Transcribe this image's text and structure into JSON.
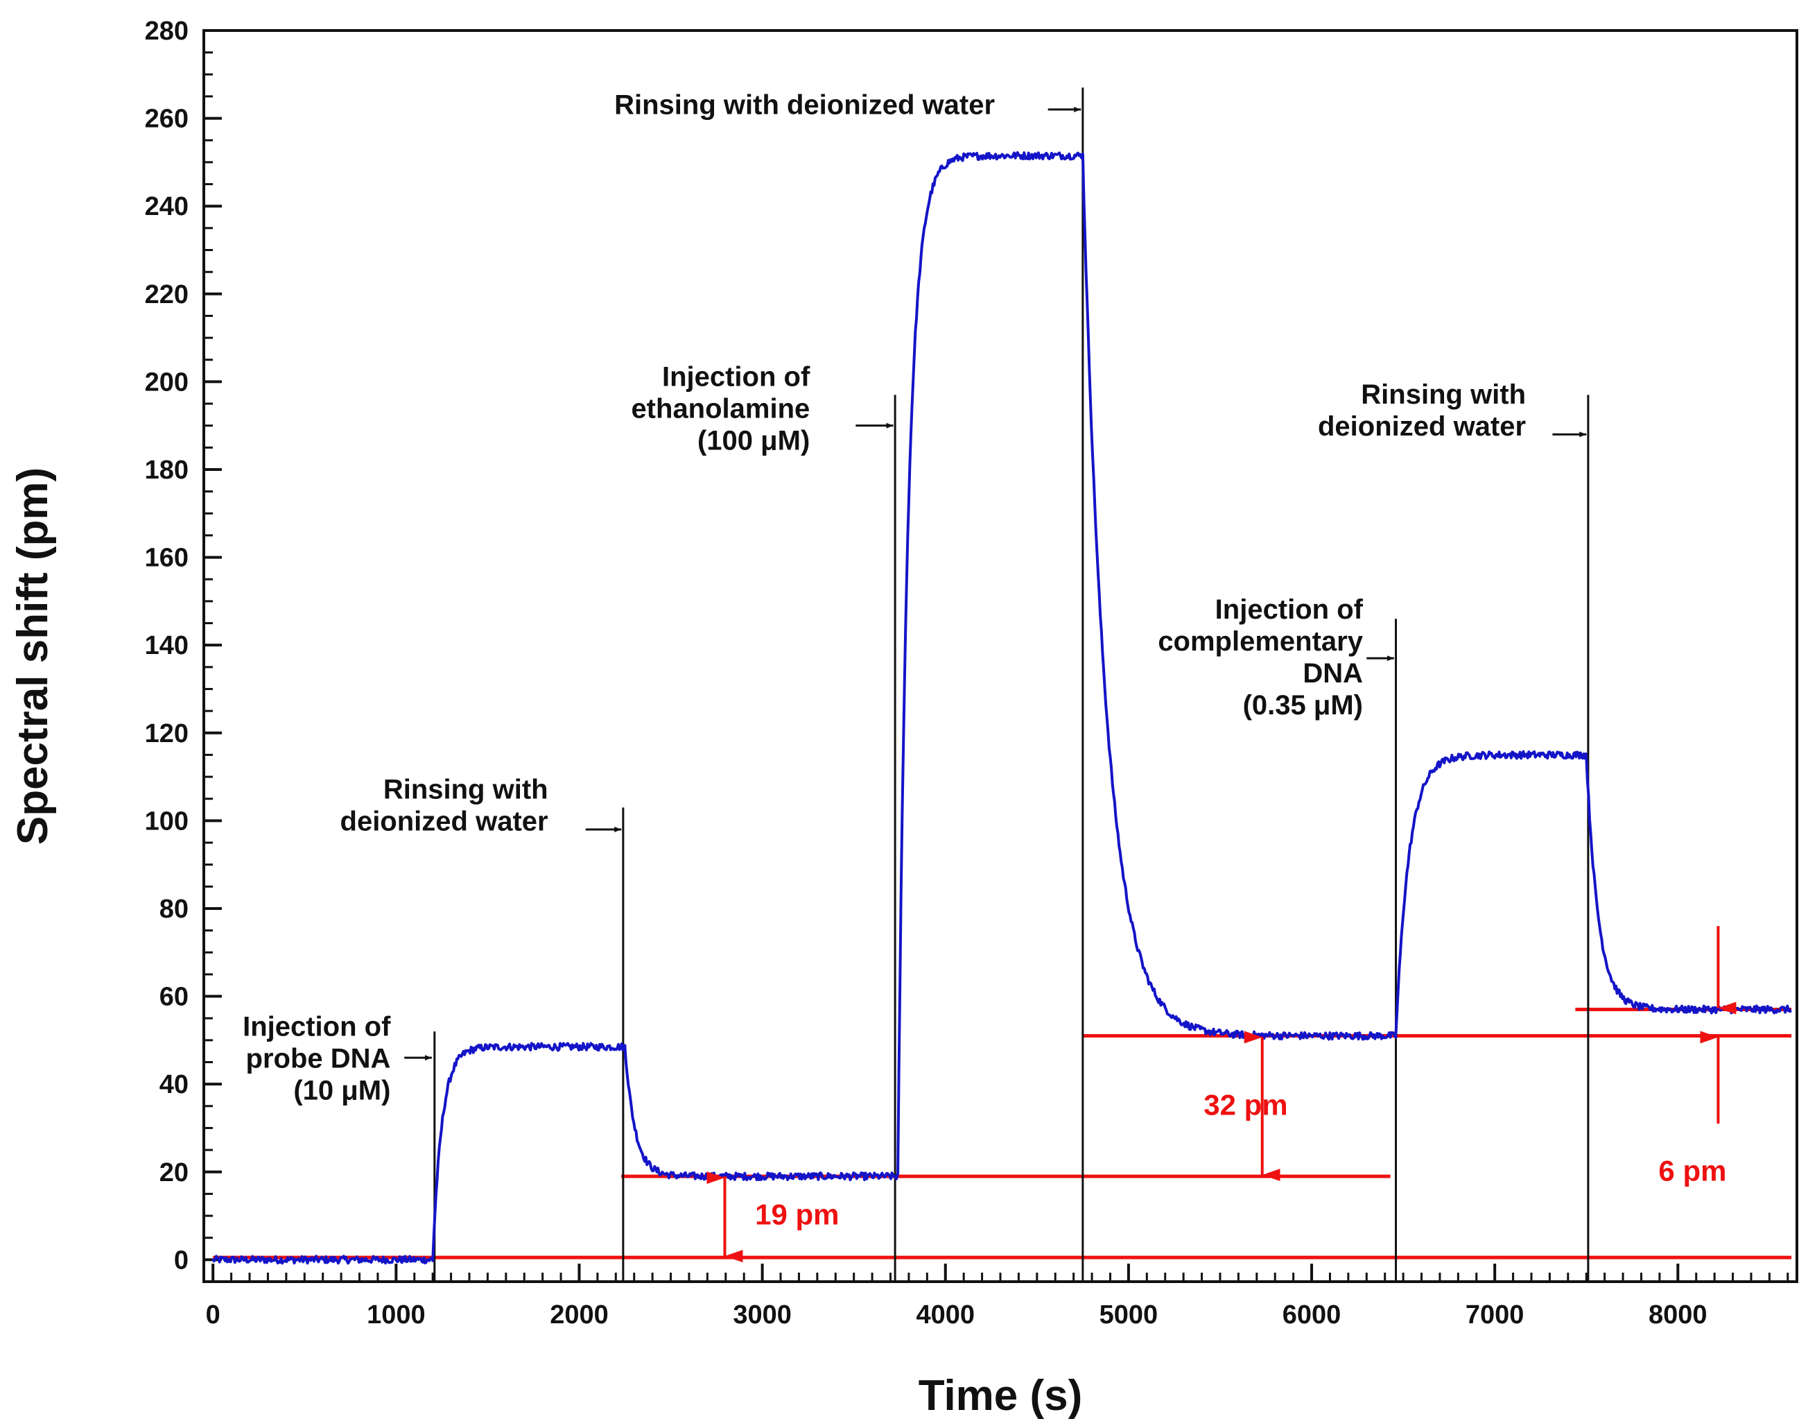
{
  "chart_data": {
    "type": "line",
    "xlabel": "Time (s)",
    "ylabel": "Spectral shift (pm)",
    "xlim": [
      -50,
      8650
    ],
    "ylim": [
      -5,
      280
    ],
    "x_ticks": [
      0,
      1000,
      2000,
      3000,
      4000,
      5000,
      6000,
      7000,
      8000
    ],
    "y_ticks": [
      0,
      20,
      40,
      60,
      80,
      100,
      120,
      140,
      160,
      180,
      200,
      220,
      240,
      260,
      280
    ],
    "series": [
      {
        "name": "spectral shift",
        "color": "#1414c8",
        "segments": [
          {
            "t0": 0,
            "t1": 1200,
            "from": 0,
            "to": 0,
            "mode": "flat"
          },
          {
            "t0": 1200,
            "t1": 2250,
            "from": 0,
            "to": 48.5,
            "mode": "rise",
            "tau": 50
          },
          {
            "t0": 2250,
            "t1": 3740,
            "from": 48.5,
            "to": 19,
            "mode": "fall",
            "tau": 55
          },
          {
            "t0": 3740,
            "t1": 4750,
            "from": 19,
            "to": 251.5,
            "mode": "rise",
            "tau": 55
          },
          {
            "t0": 4750,
            "t1": 6460,
            "from": 251.5,
            "to": 51,
            "mode": "fall",
            "tau": 130
          },
          {
            "t0": 6460,
            "t1": 7500,
            "from": 51,
            "to": 115,
            "mode": "rise",
            "tau": 70
          },
          {
            "t0": 7500,
            "t1": 8620,
            "from": 115,
            "to": 57,
            "mode": "fall",
            "tau": 65
          }
        ]
      }
    ],
    "event_lines": [
      {
        "x": 1210,
        "y_top": 52
      },
      {
        "x": 2240,
        "y_top": 103
      },
      {
        "x": 3725,
        "y_top": 197
      },
      {
        "x": 4750,
        "y_top": 267
      },
      {
        "x": 6460,
        "y_top": 146
      },
      {
        "x": 7510,
        "y_top": 197
      }
    ],
    "baselines": [
      {
        "x0": 0,
        "x1": 8620,
        "y": 0.5
      },
      {
        "x0": 2230,
        "x1": 6430,
        "y": 19
      },
      {
        "x0": 4750,
        "x1": 8620,
        "y": 51
      },
      {
        "x0": 7440,
        "x1": 8620,
        "y": 57
      }
    ],
    "annotations": [
      {
        "lines": [
          "Injection of",
          "probe DNA",
          "(10 μM)"
        ],
        "x": 970,
        "y": 51,
        "arrow_y": 46,
        "arrow_x0": 1045,
        "arrow_x1": 1195
      },
      {
        "lines": [
          "Rinsing with",
          "deionized water"
        ],
        "x": 1830,
        "y": 105,
        "arrow_y": 98,
        "arrow_x0": 2035,
        "arrow_x1": 2230
      },
      {
        "lines": [
          "Injection of",
          "ethanolamine",
          "(100 μM)"
        ],
        "x": 3260,
        "y": 199,
        "arrow_y": 190,
        "arrow_x0": 3510,
        "arrow_x1": 3715
      },
      {
        "lines": [
          "Rinsing with deionized water"
        ],
        "x": 4270,
        "y": 261,
        "arrow_y": 262,
        "arrow_x0": 4560,
        "arrow_x1": 4740
      },
      {
        "lines": [
          "Injection of",
          "complementary",
          "DNA",
          "(0.35 μM)"
        ],
        "x": 6280,
        "y": 146,
        "arrow_y": 137,
        "arrow_x0": 6300,
        "arrow_x1": 6450
      },
      {
        "lines": [
          "Rinsing with",
          "deionized water"
        ],
        "x": 7170,
        "y": 195,
        "arrow_y": 188,
        "arrow_x0": 7315,
        "arrow_x1": 7500
      }
    ],
    "shift_labels": [
      {
        "label": "19 pm",
        "x": 3190,
        "y": 8,
        "arrow_x": 2795,
        "y_low": 0.5,
        "y_high": 19,
        "kind": "double"
      },
      {
        "label": "32 pm",
        "x": 5640,
        "y": 33,
        "arrow_x": 5730,
        "y_low": 19,
        "y_high": 51,
        "kind": "double"
      },
      {
        "label": "6 pm",
        "x": 8080,
        "y": 18,
        "arrow_x": 8220,
        "y_low": 51,
        "y_high": 57,
        "kind": "inward",
        "outer_top": 76,
        "outer_bottom": 31
      }
    ]
  }
}
